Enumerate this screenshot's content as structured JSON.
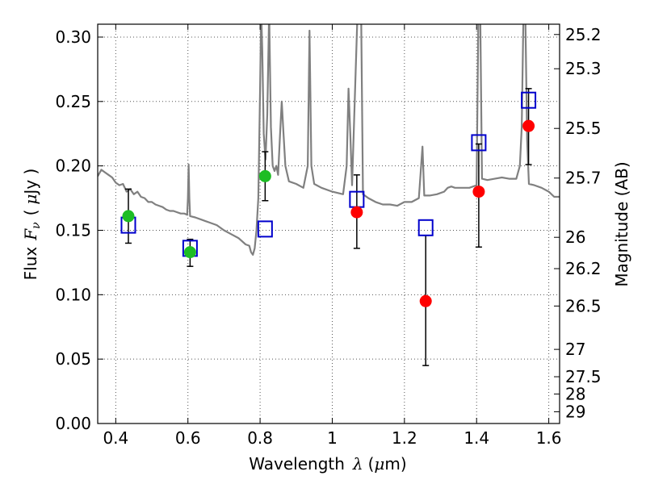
{
  "chart_data": {
    "type": "scatter",
    "xlabel_text": "Wavelength",
    "xlabel_symbol": "λ",
    "xlabel_unit_open": "(",
    "xlabel_unit_mu": "μ",
    "xlabel_unit_rest": "m)",
    "ylabel_text": "Flux",
    "ylabel_symbol": "F",
    "ylabel_sub": "ν",
    "ylabel_paren_open": "(",
    "ylabel_mu": "μ",
    "ylabel_unit_rest": "Jy )",
    "y2label": "Magnitude (AB)",
    "xlim": [
      0.35,
      1.63
    ],
    "ylim": [
      0.0,
      0.31
    ],
    "grid": true,
    "x_ticks": [
      {
        "v": 0.4,
        "label": "0.4"
      },
      {
        "v": 0.6,
        "label": "0.6"
      },
      {
        "v": 0.8,
        "label": "0.8"
      },
      {
        "v": 1.0,
        "label": "1"
      },
      {
        "v": 1.2,
        "label": "1.2"
      },
      {
        "v": 1.4,
        "label": "1.4"
      },
      {
        "v": 1.6,
        "label": "1.6"
      }
    ],
    "y_ticks": [
      {
        "v": 0.0,
        "label": "0.00"
      },
      {
        "v": 0.05,
        "label": "0.05"
      },
      {
        "v": 0.1,
        "label": "0.10"
      },
      {
        "v": 0.15,
        "label": "0.15"
      },
      {
        "v": 0.2,
        "label": "0.20"
      },
      {
        "v": 0.25,
        "label": "0.25"
      },
      {
        "v": 0.3,
        "label": "0.30"
      }
    ],
    "y2_ticks": [
      {
        "mag": 25.2,
        "label": "25.2"
      },
      {
        "mag": 25.3,
        "label": "25.3"
      },
      {
        "mag": 25.5,
        "label": "25.5"
      },
      {
        "mag": 25.7,
        "label": "25.7"
      },
      {
        "mag": 26,
        "label": "26"
      },
      {
        "mag": 26.2,
        "label": "26.2"
      },
      {
        "mag": 26.5,
        "label": "26.5"
      },
      {
        "mag": 27,
        "label": "27"
      },
      {
        "mag": 27.5,
        "label": "27.5"
      },
      {
        "mag": 28,
        "label": "28"
      },
      {
        "mag": 29,
        "label": "29"
      }
    ],
    "colors": {
      "spectrum": "#808080",
      "green": "#1dbd24",
      "red": "#ff0000",
      "model_box": "#0000cc",
      "errorbar": "#000000",
      "grid": "#555555"
    },
    "spectrum": [
      [
        0.35,
        0.192
      ],
      [
        0.36,
        0.197
      ],
      [
        0.37,
        0.195
      ],
      [
        0.38,
        0.193
      ],
      [
        0.39,
        0.191
      ],
      [
        0.4,
        0.187
      ],
      [
        0.41,
        0.185
      ],
      [
        0.42,
        0.186
      ],
      [
        0.43,
        0.18
      ],
      [
        0.44,
        0.182
      ],
      [
        0.45,
        0.178
      ],
      [
        0.46,
        0.18
      ],
      [
        0.47,
        0.176
      ],
      [
        0.48,
        0.175
      ],
      [
        0.49,
        0.172
      ],
      [
        0.5,
        0.172
      ],
      [
        0.51,
        0.17
      ],
      [
        0.52,
        0.169
      ],
      [
        0.53,
        0.168
      ],
      [
        0.54,
        0.166
      ],
      [
        0.55,
        0.165
      ],
      [
        0.56,
        0.165
      ],
      [
        0.57,
        0.164
      ],
      [
        0.58,
        0.163
      ],
      [
        0.59,
        0.163
      ],
      [
        0.598,
        0.162
      ],
      [
        0.6,
        0.175
      ],
      [
        0.602,
        0.201
      ],
      [
        0.604,
        0.175
      ],
      [
        0.606,
        0.161
      ],
      [
        0.62,
        0.16
      ],
      [
        0.64,
        0.158
      ],
      [
        0.66,
        0.156
      ],
      [
        0.68,
        0.154
      ],
      [
        0.7,
        0.15
      ],
      [
        0.72,
        0.147
      ],
      [
        0.74,
        0.144
      ],
      [
        0.76,
        0.139
      ],
      [
        0.77,
        0.138
      ],
      [
        0.775,
        0.133
      ],
      [
        0.78,
        0.131
      ],
      [
        0.785,
        0.136
      ],
      [
        0.79,
        0.15
      ],
      [
        0.795,
        0.175
      ],
      [
        0.8,
        0.26
      ],
      [
        0.803,
        0.32
      ],
      [
        0.806,
        0.29
      ],
      [
        0.81,
        0.225
      ],
      [
        0.815,
        0.205
      ],
      [
        0.82,
        0.24
      ],
      [
        0.825,
        0.32
      ],
      [
        0.83,
        0.23
      ],
      [
        0.835,
        0.2
      ],
      [
        0.84,
        0.196
      ],
      [
        0.845,
        0.2
      ],
      [
        0.85,
        0.193
      ],
      [
        0.855,
        0.223
      ],
      [
        0.86,
        0.25
      ],
      [
        0.865,
        0.225
      ],
      [
        0.87,
        0.2
      ],
      [
        0.88,
        0.188
      ],
      [
        0.9,
        0.186
      ],
      [
        0.92,
        0.183
      ],
      [
        0.932,
        0.2
      ],
      [
        0.937,
        0.305
      ],
      [
        0.942,
        0.2
      ],
      [
        0.95,
        0.186
      ],
      [
        0.97,
        0.183
      ],
      [
        1.0,
        0.18
      ],
      [
        1.03,
        0.178
      ],
      [
        1.04,
        0.2
      ],
      [
        1.045,
        0.26
      ],
      [
        1.05,
        0.225
      ],
      [
        1.055,
        0.185
      ],
      [
        1.07,
        0.32
      ],
      [
        1.08,
        0.32
      ],
      [
        1.085,
        0.178
      ],
      [
        1.1,
        0.175
      ],
      [
        1.12,
        0.172
      ],
      [
        1.14,
        0.17
      ],
      [
        1.16,
        0.17
      ],
      [
        1.18,
        0.169
      ],
      [
        1.2,
        0.172
      ],
      [
        1.22,
        0.172
      ],
      [
        1.24,
        0.175
      ],
      [
        1.25,
        0.215
      ],
      [
        1.255,
        0.177
      ],
      [
        1.27,
        0.177
      ],
      [
        1.29,
        0.178
      ],
      [
        1.31,
        0.18
      ],
      [
        1.32,
        0.183
      ],
      [
        1.33,
        0.184
      ],
      [
        1.34,
        0.183
      ],
      [
        1.36,
        0.183
      ],
      [
        1.38,
        0.183
      ],
      [
        1.4,
        0.185
      ],
      [
        1.405,
        0.32
      ],
      [
        1.41,
        0.32
      ],
      [
        1.415,
        0.19
      ],
      [
        1.43,
        0.189
      ],
      [
        1.45,
        0.19
      ],
      [
        1.47,
        0.191
      ],
      [
        1.49,
        0.19
      ],
      [
        1.51,
        0.19
      ],
      [
        1.52,
        0.2
      ],
      [
        1.525,
        0.23
      ],
      [
        1.53,
        0.32
      ],
      [
        1.535,
        0.32
      ],
      [
        1.54,
        0.22
      ],
      [
        1.545,
        0.186
      ],
      [
        1.56,
        0.185
      ],
      [
        1.58,
        0.183
      ],
      [
        1.6,
        0.18
      ],
      [
        1.615,
        0.176
      ],
      [
        1.63,
        0.176
      ]
    ],
    "series": [
      {
        "marker": "circle",
        "color": "green",
        "points": [
          {
            "x": 0.435,
            "y": 0.161,
            "lo": 0.14,
            "hi": 0.182
          },
          {
            "x": 0.606,
            "y": 0.133,
            "lo": 0.122,
            "hi": 0.143
          },
          {
            "x": 0.814,
            "y": 0.192,
            "lo": 0.173,
            "hi": 0.211
          }
        ]
      },
      {
        "marker": "circle",
        "color": "red",
        "points": [
          {
            "x": 1.068,
            "y": 0.164,
            "lo": 0.136,
            "hi": 0.193
          },
          {
            "x": 1.259,
            "y": 0.095,
            "lo": 0.045,
            "hi": 0.146
          },
          {
            "x": 1.406,
            "y": 0.18,
            "lo": 0.137,
            "hi": 0.217
          },
          {
            "x": 1.544,
            "y": 0.231,
            "lo": 0.201,
            "hi": 0.26
          }
        ]
      }
    ],
    "model_points": [
      {
        "x": 0.435,
        "y": 0.154
      },
      {
        "x": 0.606,
        "y": 0.136
      },
      {
        "x": 0.814,
        "y": 0.151
      },
      {
        "x": 1.068,
        "y": 0.174
      },
      {
        "x": 1.259,
        "y": 0.152
      },
      {
        "x": 1.406,
        "y": 0.218
      },
      {
        "x": 1.544,
        "y": 0.251
      }
    ]
  }
}
